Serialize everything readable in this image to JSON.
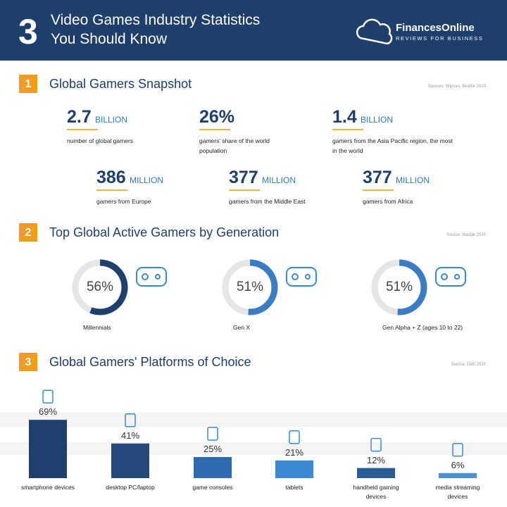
{
  "header": {
    "number": "3",
    "title": [
      "Video Games Industry Statistics",
      "You Should Know"
    ],
    "brand": "FinancesOnline",
    "tagline": "REVIEWS FOR BUSINESS"
  },
  "sections": [
    {
      "number": "1",
      "title": "Global Gamers Snapshot",
      "source": "Sources: Wijman, Beattie 2020",
      "stats": [
        {
          "value": "2.7",
          "unit": "BILLION",
          "label": "number of global gamers"
        },
        {
          "value": "26%",
          "label": "gamers' share of the world population"
        },
        {
          "value": "1.4",
          "unit": "BILLION",
          "label": "gamers from the Asia Pacific region, the most in the world"
        },
        {
          "value": "386",
          "unit": "MILLION",
          "label": "gamers from Europe"
        },
        {
          "value": "377",
          "unit": "MILLION",
          "label": "gamers from the Middle East"
        },
        {
          "value": "377",
          "unit": "MILLION",
          "label": "gamers from Africa"
        }
      ]
    },
    {
      "number": "2",
      "title": "Top Global Active Gamers by Generation",
      "source": "Source: Hardjik 2020"
    },
    {
      "number": "3",
      "title": "Global Gamers' Platforms of Choice",
      "source": "Source: GWI 2020"
    }
  ],
  "chart_data": [
    {
      "type": "donut",
      "categories": [
        "Millennials",
        "Gen X",
        "Gen Alpha + Z (ages 10 to 22)"
      ],
      "values": [
        56,
        51,
        51
      ],
      "value_labels": [
        "56%",
        "51%",
        "51%"
      ],
      "colors": [
        "#1f3f6e",
        "#3a7cc4",
        "#3a7cc4"
      ],
      "track_color": "#e6e6e6"
    },
    {
      "type": "bar",
      "categories": [
        "smartphone devices",
        "desktop PC/laptop",
        "game consoles",
        "tablets",
        "handheld gaming devices",
        "media streaming devices"
      ],
      "values": [
        69,
        41,
        25,
        21,
        12,
        6
      ],
      "value_labels": [
        "69%",
        "41%",
        "25%",
        "21%",
        "12%",
        "6%"
      ],
      "colors": [
        "#1f3f6e",
        "#24497c",
        "#2d6cb2",
        "#3a89d4",
        "#2a5d96",
        "#4d90d2"
      ]
    }
  ]
}
